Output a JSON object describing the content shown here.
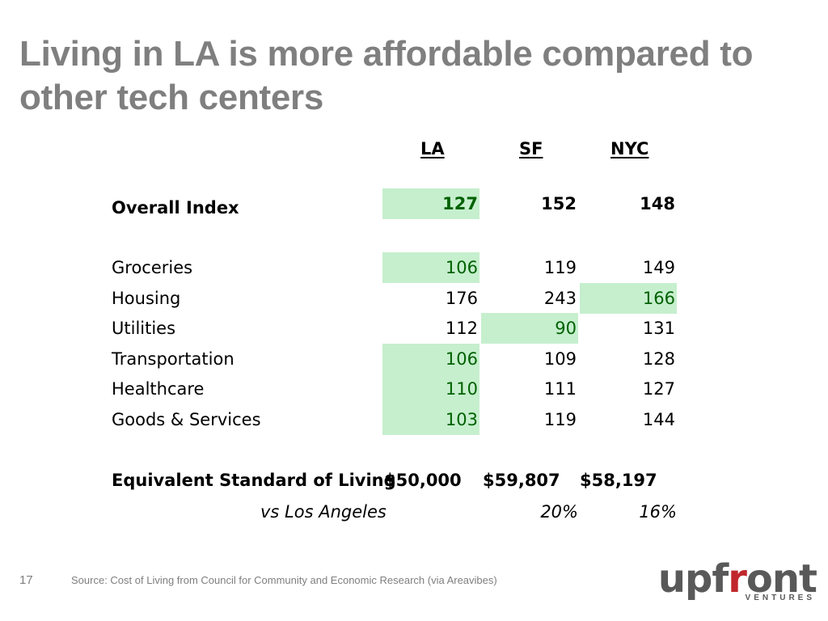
{
  "title": "Living in LA is more affordable compared to other tech centers",
  "columns": [
    "LA",
    "SF",
    "NYC"
  ],
  "overall": {
    "label": "Overall Index",
    "values": [
      "127",
      "152",
      "148"
    ],
    "highlight": [
      true,
      false,
      false
    ]
  },
  "categories": [
    {
      "label": "Groceries",
      "values": [
        "106",
        "119",
        "149"
      ],
      "highlight": [
        true,
        false,
        false
      ]
    },
    {
      "label": "Housing",
      "values": [
        "176",
        "243",
        "166"
      ],
      "highlight": [
        false,
        false,
        true
      ]
    },
    {
      "label": "Utilities",
      "values": [
        "112",
        "90",
        "131"
      ],
      "highlight": [
        false,
        true,
        false
      ]
    },
    {
      "label": "Transportation",
      "values": [
        "106",
        "109",
        "128"
      ],
      "highlight": [
        true,
        false,
        false
      ]
    },
    {
      "label": "Healthcare",
      "values": [
        "110",
        "111",
        "127"
      ],
      "highlight": [
        true,
        false,
        false
      ]
    },
    {
      "label": "Goods & Services",
      "values": [
        "103",
        "119",
        "144"
      ],
      "highlight": [
        true,
        false,
        false
      ]
    }
  ],
  "equivalent": {
    "label": "Equivalent Standard of Living",
    "values": [
      "$50,000",
      "$59,807",
      "$58,197"
    ]
  },
  "comparison": {
    "label": "vs Los Angeles",
    "values": [
      "",
      "20%",
      "16%"
    ]
  },
  "page_number": "17",
  "source": "Source: Cost of Living from Council for Community and Economic Research (via Areavibes)",
  "logo": {
    "word_main": "upf",
    "word_accent": "r",
    "word_end": "ont",
    "subtitle": "VENTURES",
    "accent_color": "#c0272d",
    "highlight_fill": "#c6efce",
    "highlight_text": "#006100"
  }
}
